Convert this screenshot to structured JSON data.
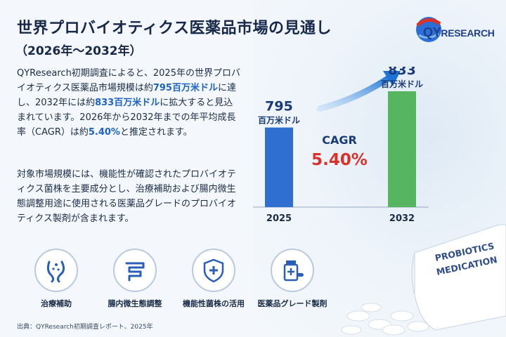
{
  "title": "世界プロバイオティクス医薬品市場の見通し",
  "subtitle": "（2026年～2032年）",
  "logo": {
    "main": "QY",
    "rest": "RESEARCH",
    "brand_color": "#1f3f8c",
    "accent_color": "#d9322b"
  },
  "paragraph1": {
    "part1": "QYResearch初期調査によると、2025年の世界プロバイオティクス医薬品市場規模は約",
    "hl1": "795百万米ドル",
    "part2": "に達し、2032年には約",
    "hl2": "833百万米ドル",
    "part3": "に拡大すると見込まれています。2026年から2032年までの年平均成長率（CAGR）は約",
    "hl3": "5.40%",
    "part4": "と推定されます。"
  },
  "paragraph2": "対象市場規模には、機能性が確認されたプロバイオティクス菌株を主要成分とし、治療補助および腸内微生態調整用途に使用される医薬品グレードのプロバイオティクス製剤が含まれます。",
  "chart_data": {
    "type": "bar",
    "categories": [
      "2025",
      "2032"
    ],
    "values": [
      795,
      833
    ],
    "value_labels": [
      "795",
      "833"
    ],
    "unit_labels": [
      "百万米ドル",
      "百万米ドル"
    ],
    "colors": [
      "#2f6fd0",
      "#55b560"
    ],
    "annotation": {
      "label": "CAGR",
      "value": "5.40%"
    },
    "grid": false
  },
  "icons": [
    {
      "name": "intestine-care-icon",
      "label": "治療補助"
    },
    {
      "name": "gut-microbiome-icon",
      "label": "腸内微生態調整"
    },
    {
      "name": "shield-plus-icon",
      "label": "機能性菌株の活用"
    },
    {
      "name": "medicine-bottle-icon",
      "label": "医薬品グレード製剤"
    }
  ],
  "bottle_label": [
    "PROBIOTICS",
    "MEDICATION"
  ],
  "source": "出典：QYResearch初期調査レポート、2025年"
}
